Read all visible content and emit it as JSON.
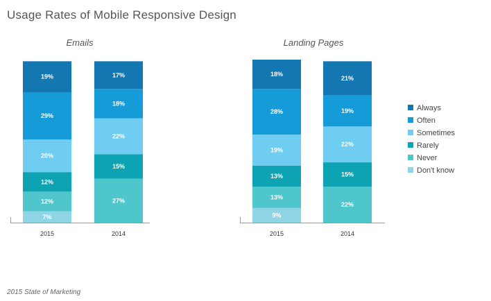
{
  "title": "Usage Rates of Mobile Responsive Design",
  "footer": "2015 State of Marketing",
  "colors": {
    "Always": "#1577b2",
    "Often": "#159cd8",
    "Sometimes": "#6fcdf2",
    "Rarely": "#0ea3b3",
    "Never": "#4fc6cc",
    "Don't know": "#8fd5e6"
  },
  "legend": [
    "Always",
    "Often",
    "Sometimes",
    "Rarely",
    "Never",
    "Don't know"
  ],
  "chart_data": [
    {
      "type": "bar",
      "stacked": true,
      "title": "Emails",
      "categories": [
        "2015",
        "2014"
      ],
      "series": [
        {
          "name": "Always",
          "values": [
            19,
            17
          ]
        },
        {
          "name": "Often",
          "values": [
            29,
            18
          ]
        },
        {
          "name": "Sometimes",
          "values": [
            20,
            22
          ]
        },
        {
          "name": "Rarely",
          "values": [
            12,
            15
          ]
        },
        {
          "name": "Never",
          "values": [
            12,
            27
          ]
        },
        {
          "name": "Don't know",
          "values": [
            7,
            0
          ]
        }
      ],
      "value_suffix": "%",
      "legend_position": "right"
    },
    {
      "type": "bar",
      "stacked": true,
      "title": "Landing Pages",
      "categories": [
        "2015",
        "2014"
      ],
      "series": [
        {
          "name": "Always",
          "values": [
            18,
            21
          ]
        },
        {
          "name": "Often",
          "values": [
            28,
            19
          ]
        },
        {
          "name": "Sometimes",
          "values": [
            19,
            22
          ]
        },
        {
          "name": "Rarely",
          "values": [
            13,
            15
          ]
        },
        {
          "name": "Never",
          "values": [
            13,
            22
          ]
        },
        {
          "name": "Don't know",
          "values": [
            9,
            0
          ]
        }
      ],
      "value_suffix": "%",
      "legend_position": "right"
    }
  ]
}
